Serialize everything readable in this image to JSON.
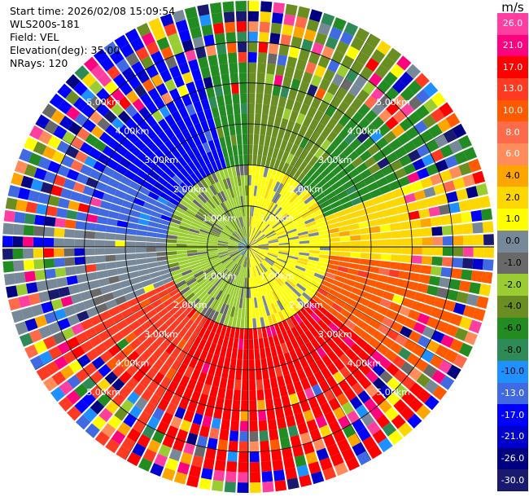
{
  "header": {
    "start_time": "Start time: 2026/02/08 15:09:54",
    "instrument": "WLS200s-181",
    "field": "Field: VEL",
    "elevation": "Elevation(deg): 35.00",
    "nrays": "NRays: 120"
  },
  "colorbar": {
    "unit": "m/s",
    "levels": [
      {
        "label": "26.0",
        "color": "#ff3fa0"
      },
      {
        "label": "21.0",
        "color": "#ff007f"
      },
      {
        "label": "17.0",
        "color": "#ff0000"
      },
      {
        "label": "13.0",
        "color": "#ff3a22"
      },
      {
        "label": "10.0",
        "color": "#ff5a00"
      },
      {
        "label": "8.0",
        "color": "#ff6a4a"
      },
      {
        "label": "6.0",
        "color": "#ff8c5a"
      },
      {
        "label": "4.0",
        "color": "#ffa500"
      },
      {
        "label": "2.0",
        "color": "#ffd700"
      },
      {
        "label": "1.0",
        "color": "#ffff00"
      },
      {
        "label": "0.0",
        "color": "#778899"
      },
      {
        "label": "-1.0",
        "color": "#696969"
      },
      {
        "label": "-2.0",
        "color": "#9acd32"
      },
      {
        "label": "-4.0",
        "color": "#6b8e23"
      },
      {
        "label": "-6.0",
        "color": "#228b22"
      },
      {
        "label": "-8.0",
        "color": "#2e8b57"
      },
      {
        "label": "-10.0",
        "color": "#1e90ff"
      },
      {
        "label": "-13.0",
        "color": "#4169e1"
      },
      {
        "label": "-17.0",
        "color": "#0000ff"
      },
      {
        "label": "-21.0",
        "color": "#0000cd"
      },
      {
        "label": "-26.0",
        "color": "#000080"
      },
      {
        "label": "-30.0",
        "color": "#191970"
      }
    ]
  },
  "chart_data": {
    "type": "heatmap",
    "projection": "polar PPI",
    "field": "VEL",
    "unit": "m/s",
    "nrays": 120,
    "range_rings_km": [
      1.0,
      2.0,
      3.0,
      4.0,
      5.0
    ],
    "ring_labels": [
      "1.00km",
      "2.00km",
      "3.00km",
      "4.00km",
      "5.00km"
    ],
    "max_range_km": 6.0,
    "azimuth_sectors_deg": [
      {
        "from": 0,
        "to": 40,
        "velocity": -4.0
      },
      {
        "from": 40,
        "to": 70,
        "velocity": -6.0
      },
      {
        "from": 70,
        "to": 95,
        "velocity": 2.0
      },
      {
        "from": 95,
        "to": 130,
        "velocity": 10.0
      },
      {
        "from": 130,
        "to": 160,
        "velocity": 17.0
      },
      {
        "from": 160,
        "to": 210,
        "velocity": 17.0
      },
      {
        "from": 210,
        "to": 245,
        "velocity": 13.0
      },
      {
        "from": 245,
        "to": 275,
        "velocity": 0.0
      },
      {
        "from": 275,
        "to": 300,
        "velocity": -13.0
      },
      {
        "from": 300,
        "to": 345,
        "velocity": -17.0
      },
      {
        "from": 345,
        "to": 360,
        "velocity": -6.0
      }
    ],
    "near_field": {
      "inner_km": 2.0,
      "east_velocity": 1.0,
      "west_velocity": -2.0
    }
  }
}
